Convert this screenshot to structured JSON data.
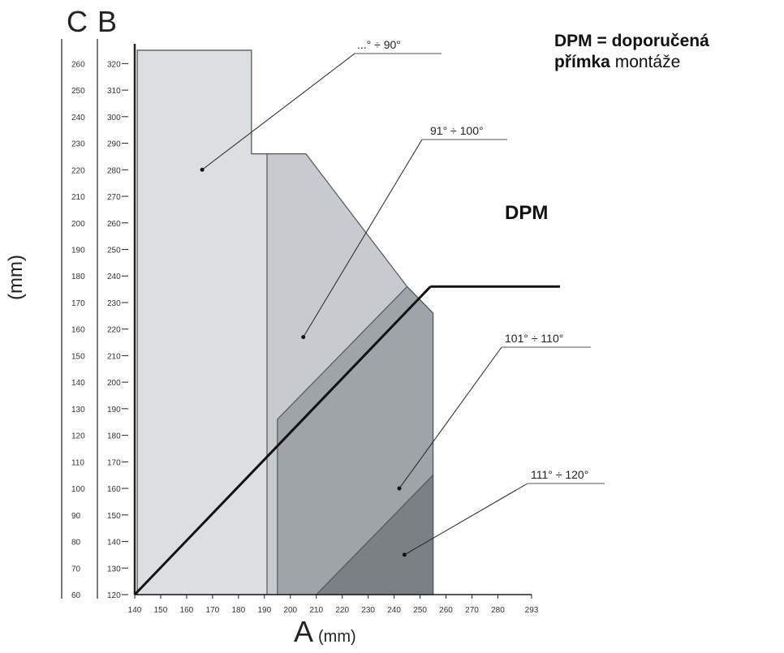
{
  "chart_data": {
    "type": "area",
    "axis_top_labels": {
      "C": "C",
      "B": "B"
    },
    "y_unit": "(mm)",
    "x_axis": {
      "letter": "A",
      "unit": "(mm)",
      "range": [
        140,
        293
      ],
      "ticks": [
        140,
        150,
        160,
        170,
        180,
        190,
        200,
        210,
        220,
        230,
        240,
        250,
        260,
        270,
        280,
        293
      ]
    },
    "y_axis_B": {
      "range": [
        120,
        325
      ],
      "ticks": [
        120,
        130,
        140,
        150,
        160,
        170,
        180,
        190,
        200,
        210,
        220,
        230,
        240,
        250,
        260,
        270,
        280,
        290,
        300,
        310,
        320
      ]
    },
    "y_axis_C": {
      "range": [
        60,
        265
      ],
      "ticks": [
        60,
        70,
        80,
        90,
        100,
        110,
        120,
        130,
        140,
        150,
        160,
        170,
        180,
        190,
        200,
        210,
        220,
        230,
        240,
        250,
        260
      ]
    },
    "legend_note": {
      "line1": "DPM = doporučená",
      "line2_bold": "přímka",
      "line2_rest": " montáže"
    },
    "regions": [
      {
        "label": "...° ÷ 90°",
        "color": "#dcdfe2",
        "points": [
          [
            141,
            325
          ],
          [
            185,
            325
          ],
          [
            185,
            286
          ],
          [
            193,
            286
          ],
          [
            193,
            325
          ]
        ],
        "polygon": [
          [
            141,
            120
          ],
          [
            141,
            325
          ],
          [
            185,
            325
          ],
          [
            185,
            286
          ],
          [
            191,
            286
          ],
          [
            191,
            120
          ]
        ]
      },
      {
        "label": "91° ÷ 100°",
        "color": "#c7cbcf",
        "polygon": [
          [
            141,
            120
          ],
          [
            141,
            325
          ],
          [
            185,
            325
          ],
          [
            185,
            286
          ],
          [
            206,
            286
          ],
          [
            245,
            236
          ],
          [
            255,
            226
          ],
          [
            255,
            120
          ]
        ]
      },
      {
        "label": "101° ÷ 110°",
        "color": "#9fa4ab",
        "polygon": [
          [
            195,
            120
          ],
          [
            195,
            186
          ],
          [
            245,
            236
          ],
          [
            255,
            226
          ],
          [
            255,
            120
          ]
        ]
      },
      {
        "label": "111° ÷ 120°",
        "color": "#7b7f86",
        "polygon": [
          [
            210,
            120
          ],
          [
            255,
            165
          ],
          [
            255,
            120
          ]
        ]
      }
    ],
    "dpm_line": {
      "label": "DPM",
      "from": [
        140,
        120
      ],
      "to": [
        254,
        236
      ]
    }
  }
}
